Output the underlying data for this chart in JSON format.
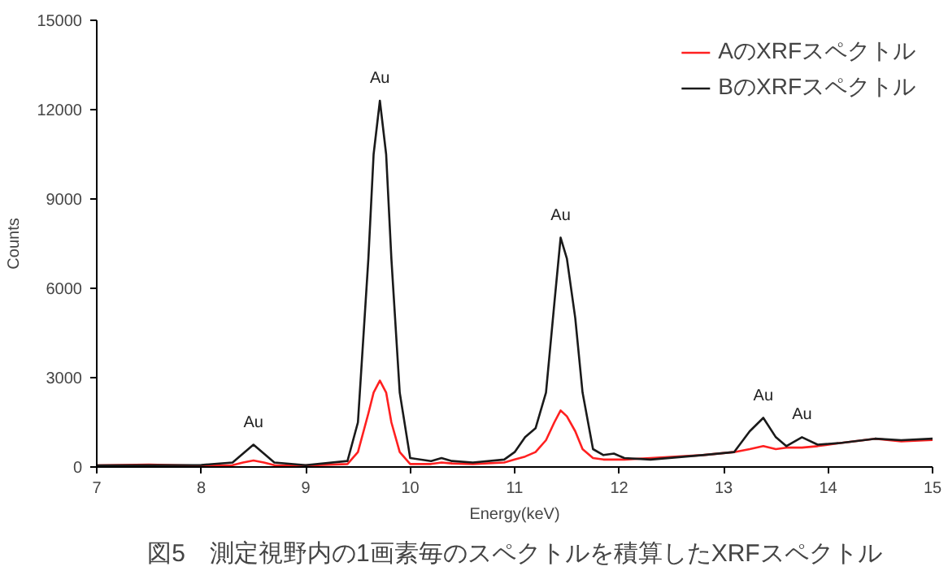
{
  "chart_data": {
    "type": "line",
    "title": "図5　測定視野内の1画素毎のスペクトルを積算したXRFスペクトル",
    "xlabel": "Energy(keV)",
    "ylabel": "Counts",
    "x": [
      7.0,
      7.5,
      8.0,
      8.3,
      8.4,
      8.5,
      8.6,
      8.7,
      9.0,
      9.4,
      9.5,
      9.6,
      9.65,
      9.71,
      9.77,
      9.82,
      9.9,
      10.0,
      10.2,
      10.3,
      10.4,
      10.6,
      10.9,
      11.0,
      11.1,
      11.2,
      11.3,
      11.38,
      11.44,
      11.5,
      11.58,
      11.65,
      11.75,
      11.85,
      11.95,
      12.05,
      12.3,
      12.8,
      13.1,
      13.25,
      13.38,
      13.5,
      13.6,
      13.75,
      13.9,
      14.1,
      14.45,
      14.7,
      15.0
    ],
    "series": [
      {
        "name": "AのXRFスペクトル",
        "color": "#ff2020",
        "values": [
          50,
          80,
          40,
          60,
          150,
          220,
          150,
          60,
          50,
          100,
          500,
          1800,
          2500,
          2900,
          2500,
          1500,
          500,
          100,
          100,
          150,
          120,
          100,
          150,
          250,
          350,
          500,
          900,
          1500,
          1900,
          1700,
          1200,
          600,
          300,
          250,
          250,
          250,
          300,
          400,
          500,
          600,
          700,
          600,
          650,
          650,
          700,
          800,
          950,
          860,
          910
        ]
      },
      {
        "name": "BのXRFスペクトル",
        "color": "#1a1a1a",
        "values": [
          50,
          60,
          70,
          150,
          450,
          750,
          450,
          150,
          60,
          200,
          1500,
          7000,
          10500,
          12300,
          10500,
          7000,
          2500,
          300,
          200,
          300,
          200,
          150,
          250,
          500,
          1000,
          1300,
          2500,
          5500,
          7700,
          7000,
          5000,
          2500,
          600,
          400,
          450,
          300,
          250,
          400,
          500,
          1200,
          1650,
          1000,
          700,
          1000,
          750,
          800,
          950,
          900,
          950
        ]
      }
    ],
    "annotations": [
      {
        "text": "Au",
        "x": 8.5,
        "y": 750
      },
      {
        "text": "Au",
        "x": 9.71,
        "y": 12300
      },
      {
        "text": "Au",
        "x": 11.44,
        "y": 7700
      },
      {
        "text": "Au",
        "x": 13.38,
        "y": 1650
      },
      {
        "text": "Au",
        "x": 13.75,
        "y": 1000
      }
    ],
    "xlim": [
      7,
      15
    ],
    "ylim": [
      0,
      15000
    ],
    "xticks": [
      7,
      8,
      9,
      10,
      11,
      12,
      13,
      14,
      15
    ],
    "yticks": [
      0,
      3000,
      6000,
      9000,
      12000,
      15000
    ],
    "legend": "top right",
    "grid": false,
    "line_style": "solid",
    "marker": "none"
  }
}
